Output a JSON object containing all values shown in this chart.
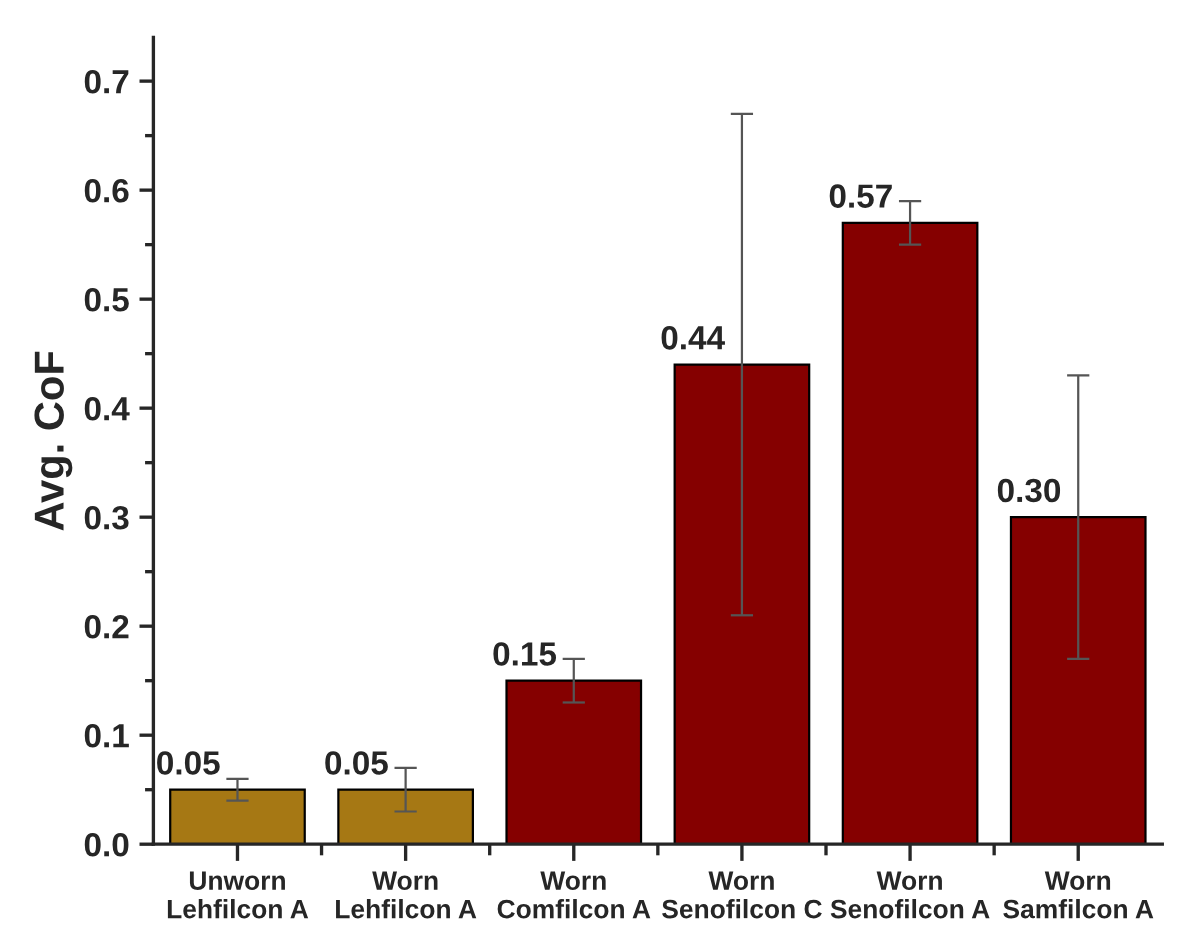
{
  "chart_data": {
    "type": "bar",
    "ylabel": "Avg. CoF",
    "categories": [
      "Unworn\nLehfilcon A",
      "Worn\nLehfilcon A",
      "Worn\nComfilcon A",
      "Worn\nSenofilcon C",
      "Worn\nSenofilcon A",
      "Worn\nSamfilcon A"
    ],
    "values": [
      0.05,
      0.05,
      0.15,
      0.44,
      0.57,
      0.3
    ],
    "colors": [
      "#a67814",
      "#a67814",
      "#850000",
      "#850000",
      "#850000",
      "#850000"
    ],
    "errors": [
      0.01,
      0.02,
      0.02,
      0.23,
      0.02,
      0.13
    ],
    "value_labels": [
      "0.05",
      "0.05",
      "0.15",
      "0.44",
      "0.57",
      "0.30"
    ],
    "ylim": [
      0,
      0.74
    ],
    "yticks": [
      "0.0",
      {
        "value": 0.05,
        "label": null
      },
      0.1,
      {
        "value": 0.15,
        "label": null
      },
      0.2,
      {
        "value": 0.25,
        "label": null
      },
      0.3,
      {
        "value": 0.35,
        "label": null
      },
      0.4,
      {
        "value": 0.45,
        "label": null
      },
      0.5,
      {
        "value": 0.55,
        "label": null
      },
      0.6,
      {
        "value": 0.65,
        "label": null
      },
      0.7
    ],
    "grid": false,
    "legend": false
  }
}
